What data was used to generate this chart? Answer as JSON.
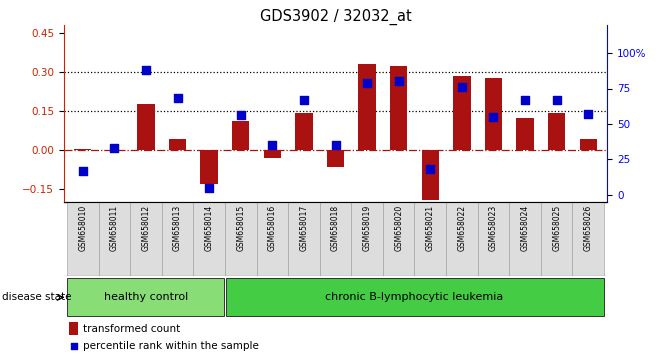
{
  "title": "GDS3902 / 32032_at",
  "samples": [
    "GSM658010",
    "GSM658011",
    "GSM658012",
    "GSM658013",
    "GSM658014",
    "GSM658015",
    "GSM658016",
    "GSM658017",
    "GSM658018",
    "GSM658019",
    "GSM658020",
    "GSM658021",
    "GSM658022",
    "GSM658023",
    "GSM658024",
    "GSM658025",
    "GSM658026"
  ],
  "bar_values": [
    0.002,
    -0.003,
    0.175,
    0.04,
    -0.13,
    0.11,
    -0.033,
    0.14,
    -0.065,
    0.33,
    0.32,
    -0.195,
    0.285,
    0.275,
    0.12,
    0.14,
    0.04
  ],
  "scatter_pct": [
    17,
    33,
    88,
    68,
    5,
    56,
    35,
    67,
    35,
    79,
    80,
    18,
    76,
    55,
    67,
    67,
    57
  ],
  "ylim_left": [
    -0.2,
    0.48
  ],
  "ylim_right": [
    -5,
    120
  ],
  "yticks_left": [
    -0.15,
    0.0,
    0.15,
    0.3,
    0.45
  ],
  "yticks_right": [
    0,
    25,
    50,
    75,
    100
  ],
  "hlines": [
    0.15,
    0.3
  ],
  "healthy_count": 5,
  "bar_color": "#aa1111",
  "scatter_color": "#0000cc",
  "scatter_size": 28,
  "healthy_color": "#88dd77",
  "leukemia_color": "#44cc44",
  "bg_color": "#ffffff",
  "label_bar": "transformed count",
  "label_scatter": "percentile rank within the sample",
  "group_label": "disease state",
  "group1_label": "healthy control",
  "group2_label": "chronic B-lymphocytic leukemia"
}
